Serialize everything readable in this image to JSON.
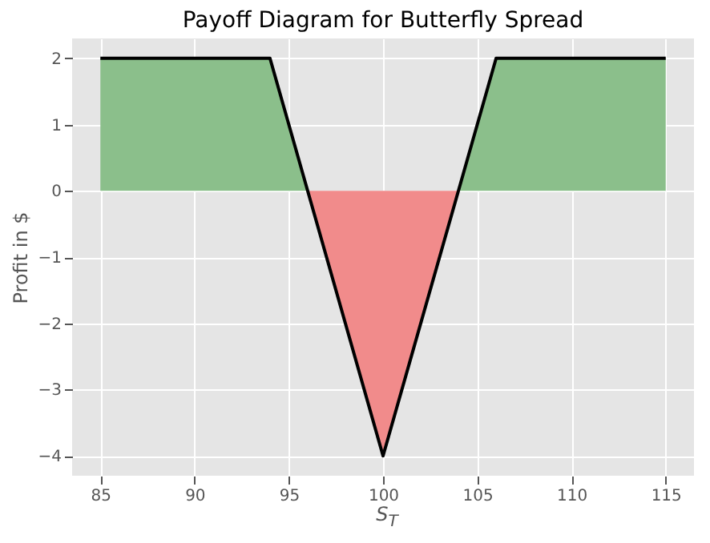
{
  "chart_data": {
    "type": "line",
    "title": "Payoff Diagram for Butterfly Spread",
    "xlabel": "S$_{T}$",
    "ylabel": "Profit in $",
    "xlim": [
      83.5,
      116.5
    ],
    "ylim": [
      -4.3,
      2.3
    ],
    "xticks": [
      85,
      90,
      95,
      100,
      105,
      110,
      115
    ],
    "yticks": [
      -4,
      -3,
      -2,
      -1,
      0,
      1,
      2
    ],
    "grid": true,
    "series": [
      {
        "type": "area",
        "color": "#8bbf8b",
        "x": [
          85,
          94,
          96,
          104,
          106,
          115
        ],
        "values": [
          2,
          2,
          0,
          0,
          2,
          2
        ]
      },
      {
        "type": "area",
        "color": "#f18b8b",
        "x": [
          96,
          100,
          104
        ],
        "values": [
          0,
          -4,
          0
        ]
      },
      {
        "color": "#000000",
        "x": [
          85,
          94,
          100,
          106,
          115
        ],
        "values": [
          2,
          2,
          -4,
          2,
          2
        ]
      }
    ]
  }
}
